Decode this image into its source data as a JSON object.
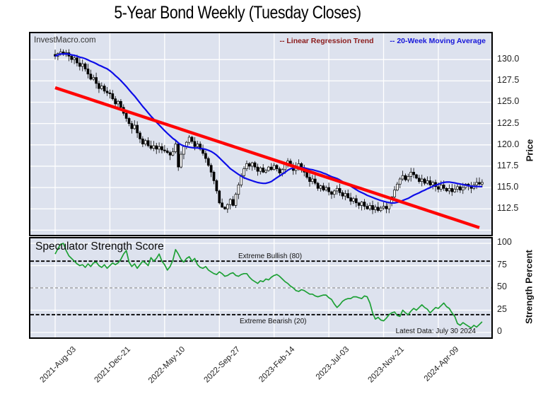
{
  "title": "5-Year Bond Weekly (Tuesday Closes)",
  "watermark": "InvestMacro.com",
  "legend": {
    "regression": {
      "label": "-- Linear Regression Trend",
      "text_color": "#8b1b1b"
    },
    "moving_average": {
      "label": "-- 20-Week Moving Average",
      "text_color": "#1616d9"
    }
  },
  "price_panel": {
    "ylabel": "Price",
    "ytick_labels": [
      "130.0",
      "127.5",
      "125.0",
      "122.5",
      "120.0",
      "117.5",
      "115.0",
      "112.5"
    ]
  },
  "strength_panel": {
    "title": "Speculator Strength Score",
    "ylabel": "Strength Percent",
    "ytick_labels": [
      "100",
      "75",
      "50",
      "25",
      "0"
    ],
    "bullish_label": "Extreme Bullish (80)",
    "bearish_label": "Extreme Bearish (20)",
    "note": "Latest Data: July 30 2024"
  },
  "colors": {
    "panel_bg": "#dde2ee",
    "grid": "#ffffff",
    "regression_line": "#ff0404",
    "ma_line": "#0d0de8",
    "strength_line": "#1da035",
    "candle": "#000000",
    "ref_black": "#000000",
    "ref_gray": "#808080"
  },
  "chart_data": [
    {
      "type": "candlestick",
      "panel": "price",
      "title": "5-Year Bond Weekly (Tuesday Closes)",
      "ylabel": "Price",
      "ylim": [
        109.25,
        133.25
      ],
      "yticks": [
        130.0,
        127.5,
        125.0,
        122.5,
        120.0,
        117.5,
        115.0,
        112.5,
        110.0
      ],
      "x_tick_labels": [
        "2021-Aug-03",
        "2021-Dec-21",
        "2022-May-10",
        "2022-Sep-27",
        "2023-Feb-14",
        "2023-Jul-03",
        "2023-Nov-21",
        "2024-Apr-09"
      ],
      "x_tick_weeks": [
        0,
        20,
        40,
        60,
        80,
        100,
        120,
        140
      ],
      "weekly_closes": [
        130.4,
        130.7,
        130.9,
        130.6,
        130.8,
        130.4,
        130.0,
        130.2,
        129.6,
        129.2,
        129.5,
        128.9,
        128.3,
        127.7,
        127.9,
        127.2,
        126.6,
        126.9,
        126.3,
        126.1,
        126.0,
        125.4,
        124.8,
        125.1,
        124.4,
        123.7,
        123.1,
        122.5,
        121.9,
        122.3,
        121.4,
        120.7,
        120.1,
        120.5,
        119.9,
        119.6,
        119.9,
        119.5,
        119.8,
        119.4,
        119.3,
        119.1,
        118.8,
        119.2,
        120.1,
        117.4,
        118.9,
        119.8,
        120.3,
        120.9,
        120.4,
        119.8,
        120.1,
        119.5,
        119.0,
        118.4,
        117.6,
        116.8,
        115.8,
        114.6,
        113.2,
        112.7,
        112.5,
        113.0,
        113.6,
        112.9,
        114.2,
        115.3,
        116.4,
        117.2,
        117.8,
        117.5,
        117.9,
        117.4,
        116.9,
        117.3,
        116.8,
        117.0,
        117.4,
        117.1,
        117.6,
        117.2,
        116.7,
        117.1,
        117.7,
        118.1,
        117.6,
        117.0,
        117.4,
        117.8,
        117.3,
        116.8,
        116.2,
        115.7,
        116.0,
        115.5,
        114.9,
        115.2,
        114.7,
        115.0,
        114.5,
        114.2,
        114.6,
        114.9,
        114.4,
        114.0,
        114.3,
        113.8,
        113.4,
        113.7,
        113.2,
        112.9,
        113.3,
        112.8,
        112.5,
        112.9,
        112.4,
        112.7,
        112.3,
        112.6,
        112.8,
        112.5,
        113.2,
        113.9,
        114.7,
        115.4,
        116.0,
        116.4,
        115.9,
        116.3,
        116.8,
        116.5,
        116.1,
        115.7,
        116.0,
        115.5,
        115.8,
        115.3,
        115.6,
        115.1,
        114.8,
        115.3,
        114.9,
        114.6,
        114.9,
        114.5,
        114.8,
        115.1,
        114.7,
        115.0,
        115.4,
        115.2,
        114.9,
        115.3,
        115.6,
        115.4,
        115.6
      ],
      "moving_average_window": 20,
      "regression_trend": {
        "start_week": 0,
        "start_value": 126.7,
        "end_week": 155,
        "end_value": 110.3
      }
    },
    {
      "type": "line",
      "panel": "strength",
      "title": "Speculator Strength Score",
      "ylabel": "Strength Percent",
      "ylim": [
        -6.3,
        107.1
      ],
      "yticks": [
        100,
        75,
        50,
        25,
        0
      ],
      "ref_lines": [
        {
          "value": 80,
          "label": "Extreme Bullish (80)",
          "style": "black-dashed"
        },
        {
          "value": 50,
          "label": "",
          "style": "gray-dashed"
        },
        {
          "value": 20,
          "label": "Extreme Bearish (20)",
          "style": "black-dashed"
        }
      ],
      "values": [
        88,
        94,
        99,
        100,
        92,
        86,
        83,
        80,
        77,
        75,
        76,
        73,
        77,
        74,
        78,
        79,
        75,
        73,
        76,
        72,
        75,
        78,
        76,
        78,
        82,
        88,
        92,
        79,
        74,
        77,
        72,
        76,
        80,
        78,
        75,
        84,
        80,
        83,
        88,
        80,
        76,
        70,
        74,
        81,
        93,
        88,
        82,
        79,
        83,
        85,
        80,
        83,
        76,
        73,
        72,
        74,
        70,
        68,
        66,
        65,
        68,
        66,
        63,
        64,
        66,
        67,
        64,
        63,
        65,
        66,
        66,
        62,
        59,
        57,
        55,
        58,
        57,
        60,
        59,
        62,
        64,
        65,
        63,
        60,
        57,
        55,
        52,
        50,
        47,
        46,
        48,
        47,
        45,
        43,
        43,
        41,
        40,
        41,
        42,
        42,
        39,
        37,
        32,
        28,
        31,
        35,
        37,
        38,
        38,
        40,
        40,
        39,
        38,
        41,
        40,
        33,
        22,
        15,
        17,
        14,
        13,
        16,
        20,
        22,
        23,
        19,
        18,
        25,
        22,
        20,
        24,
        27,
        25,
        28,
        31,
        28,
        26,
        22,
        25,
        28,
        27,
        30,
        33,
        29,
        27,
        22,
        18,
        10,
        8,
        11,
        9,
        7,
        5,
        8,
        6,
        9,
        12
      ],
      "note": "Latest Data: July 30 2024"
    }
  ]
}
